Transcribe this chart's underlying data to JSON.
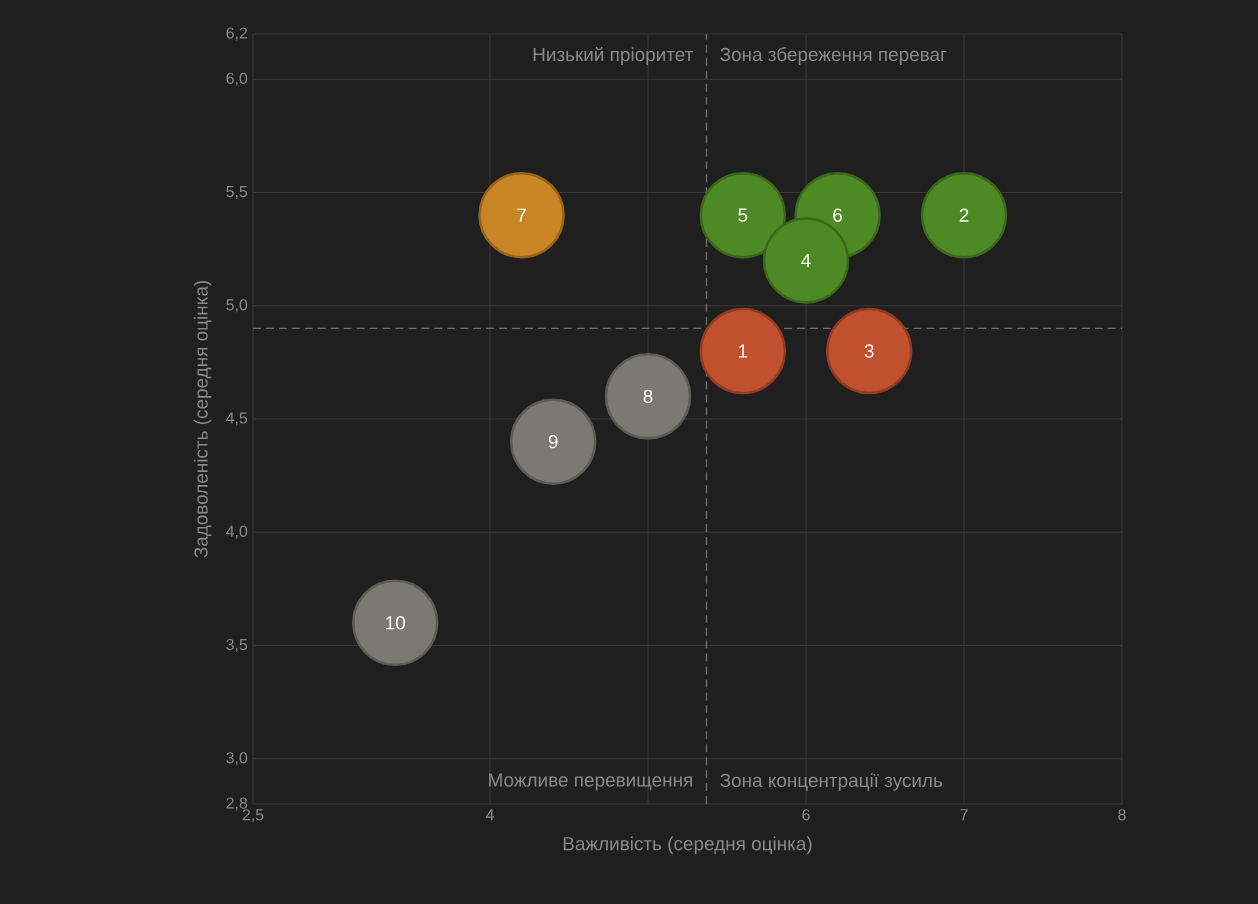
{
  "chart_data": {
    "type": "scatter",
    "xlabel": "Важливість (середня оцінка)",
    "ylabel": "Задоволеність (середня оцінка)",
    "xlim": [
      2.5,
      8
    ],
    "ylim": [
      2.8,
      6.2
    ],
    "xticks": [
      {
        "value": 2.5,
        "label": "2,5"
      },
      4,
      {
        "value": 5,
        "label": null
      },
      6,
      7,
      8
    ],
    "yticks": [
      {
        "value": 2.8,
        "label": "2,8"
      },
      {
        "value": 3,
        "label": "3,0"
      },
      {
        "value": 3.5,
        "label": "3,5"
      },
      {
        "value": 4,
        "label": "4,0"
      },
      {
        "value": 4.5,
        "label": "4,5"
      },
      {
        "value": 5,
        "label": "5,0"
      },
      {
        "value": 5.5,
        "label": "5,5"
      },
      {
        "value": 6,
        "label": "6,0"
      },
      {
        "value": 6.2,
        "label": "6,2"
      }
    ],
    "grid": true,
    "ref_lines": [
      {
        "axis": "x",
        "value": 5.37,
        "color": "#6e6e6e",
        "line_style": "dashed"
      },
      {
        "axis": "y",
        "value": 4.9,
        "color": "#6e6e6e",
        "line_style": "dashed"
      }
    ],
    "annotations": [
      "Низький пріоритет",
      "Зона збереження переваг",
      "Можливе перевищення",
      "Зона концентрації зусиль",
      {
        "text": "8",
        "x": 5.0,
        "y": 4.6
      },
      {
        "text": "9",
        "x": 4.4,
        "y": 4.4
      },
      {
        "text": "10",
        "x": 3.4,
        "y": 3.6
      },
      {
        "text": "7",
        "x": 4.2,
        "y": 5.4
      },
      {
        "text": "1",
        "x": 5.6,
        "y": 4.8
      },
      {
        "text": "3",
        "x": 6.4,
        "y": 4.8
      },
      {
        "text": "5",
        "x": 5.6,
        "y": 5.4
      },
      {
        "text": "6",
        "x": 6.2,
        "y": 5.4
      },
      {
        "text": "2",
        "x": 7.0,
        "y": 5.4
      },
      {
        "text": "4",
        "x": 6.0,
        "y": 5.2
      }
    ],
    "series": [
      {
        "color": "#7b7974",
        "x": [
          5.0,
          4.4,
          3.4
        ],
        "values": [
          4.6,
          4.4,
          3.6
        ]
      },
      {
        "color": "#c98424",
        "x": [
          4.2
        ],
        "values": [
          5.4
        ]
      },
      {
        "color": "#c0502e",
        "x": [
          5.6,
          6.4
        ],
        "values": [
          4.8,
          4.8
        ]
      },
      {
        "color": "#4e8a24",
        "x": [
          5.6,
          6.2,
          7.0,
          6.0
        ],
        "values": [
          5.4,
          5.4,
          5.4,
          5.2
        ]
      }
    ]
  }
}
